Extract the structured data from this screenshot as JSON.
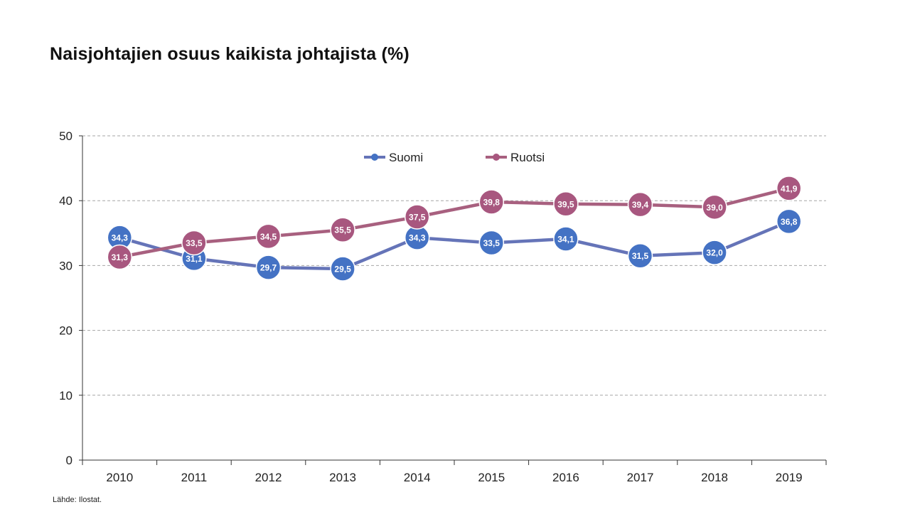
{
  "chart_data": {
    "type": "line",
    "title": "Naisjohtajien osuus kaikista johtajista (%)",
    "source": "Lähde: Ilostat.",
    "xlabel": "",
    "ylabel": "",
    "categories": [
      "2010",
      "2011",
      "2012",
      "2013",
      "2014",
      "2015",
      "2016",
      "2017",
      "2018",
      "2019"
    ],
    "ylim": [
      0,
      50
    ],
    "yticks": [
      0,
      10,
      20,
      30,
      40,
      50
    ],
    "grid": true,
    "legend_position": "top-center",
    "series": [
      {
        "name": "Suomi",
        "color": "#6574b8",
        "marker_color": "#4472c4",
        "values": [
          34.3,
          31.1,
          29.7,
          29.5,
          34.3,
          33.5,
          34.1,
          31.5,
          32.0,
          36.8
        ],
        "labels": [
          "34,3",
          "31,1",
          "29,7",
          "29,5",
          "34,3",
          "33,5",
          "34,1",
          "31,5",
          "32,0",
          "36,8"
        ]
      },
      {
        "name": "Ruotsi",
        "color": "#a8607f",
        "marker_color": "#a8577f",
        "values": [
          31.3,
          33.5,
          34.5,
          35.5,
          37.5,
          39.8,
          39.5,
          39.4,
          39.0,
          41.9
        ],
        "labels": [
          "31,3",
          "33,5",
          "34,5",
          "35,5",
          "37,5",
          "39,8",
          "39,5",
          "39,4",
          "39,0",
          "41,9"
        ]
      }
    ]
  }
}
